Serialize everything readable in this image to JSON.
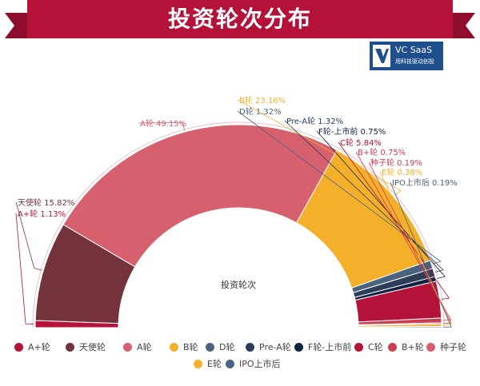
{
  "banner": {
    "title": "投资轮次分布"
  },
  "logo": {
    "title": "VC SaaS",
    "subtitle": "用科技驱动创投"
  },
  "chart_data": {
    "type": "pie",
    "variant": "half-donut",
    "center_label": "投资轮次",
    "label_format": "{name} {percent}%",
    "series": [
      {
        "name": "A+轮",
        "value": 1.13,
        "color": "#b5123a"
      },
      {
        "name": "天使轮",
        "value": 15.82,
        "color": "#74333b"
      },
      {
        "name": "A轮",
        "value": 49.15,
        "color": "#d6606e"
      },
      {
        "name": "B轮",
        "value": 23.16,
        "color": "#f4b02a"
      },
      {
        "name": "D轮",
        "value": 1.32,
        "color": "#4a6480"
      },
      {
        "name": "Pre-A轮",
        "value": 1.32,
        "color": "#2b3d58"
      },
      {
        "name": "F轮-上市前",
        "value": 0.75,
        "color": "#0f2244"
      },
      {
        "name": "C轮",
        "value": 5.84,
        "color": "#b5123a"
      },
      {
        "name": "B+轮",
        "value": 0.75,
        "color": "#cc3d52"
      },
      {
        "name": "种子轮",
        "value": 0.19,
        "color": "#d6606e"
      },
      {
        "name": "E轮",
        "value": 0.38,
        "color": "#f4b02a"
      },
      {
        "name": "IPO上市后",
        "value": 0.19,
        "color": "#4a6480"
      }
    ],
    "label_colors": {
      "A+轮": "#b5123a",
      "天使轮": "#74333b",
      "A轮": "#d6606e",
      "B轮": "#f4b02a",
      "D轮": "#4a6480",
      "Pre-A轮": "#2b3d58",
      "F轮-上市前": "#0f2244",
      "C轮": "#b5123a",
      "B+轮": "#cc3d52",
      "种子轮": "#cc3d52",
      "E轮": "#f4b02a",
      "IPO上市后": "#4a6480"
    }
  }
}
